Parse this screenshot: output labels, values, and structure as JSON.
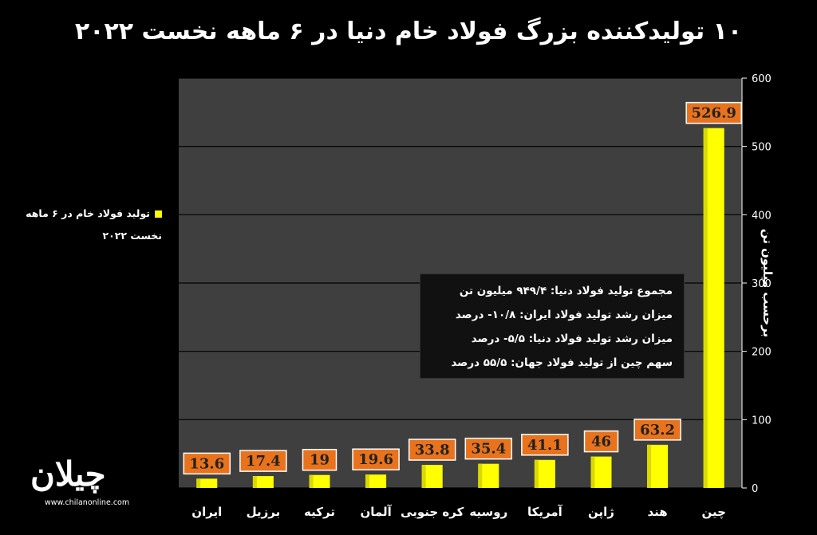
{
  "title": "۱۰ تولیدکننده بزرگ فولاد خام دنیا در ۶ ماهه نخست ۲۰۲۲",
  "logo": {
    "text": "چیلان",
    "url": "www.chilanonline.com"
  },
  "info_box": [
    "مجموع تولید فولاد دنیا: ۹۴۹/۴ میلیون تن",
    "میزان رشد تولید فولاد ایران: ۱۰/۸- درصد",
    "میزان رشد تولید فولاد دنیا: ۵/۵- درصد",
    "سهم چین از تولید فولاد جهان: ۵۵/۵ درصد"
  ],
  "chart_data": {
    "type": "bar",
    "title": "۱۰ تولیدکننده بزرگ فولاد خام دنیا در ۶ ماهه نخست ۲۰۲۲",
    "categories": [
      "ایران",
      "برزیل",
      "ترکیه",
      "آلمان",
      "کره جنوبی",
      "روسیه",
      "آمریکا",
      "ژاپن",
      "هند",
      "چین"
    ],
    "series": [
      {
        "name": "تولید فولاد خام در ۶ ماهه نخست ۲۰۲۲",
        "values": [
          13.6,
          17.4,
          19,
          19.6,
          33.8,
          35.4,
          41.1,
          46,
          63.2,
          526.9
        ]
      }
    ],
    "data_labels": [
      "13.6",
      "17.4",
      "19",
      "19.6",
      "33.8",
      "35.4",
      "41.1",
      "46",
      "63.2",
      "526.9"
    ],
    "ylabel": "برحسب میلیون تن",
    "ylim": [
      0,
      600
    ],
    "yticks": [
      "0",
      "100",
      "200",
      "300",
      "400",
      "500",
      "600"
    ],
    "grid": true,
    "legend_position": "left",
    "colors": {
      "bar": "#ffff00",
      "label_bg": "#e8731c",
      "plot_bg": "#3f3f3f",
      "background": "#000000"
    }
  }
}
